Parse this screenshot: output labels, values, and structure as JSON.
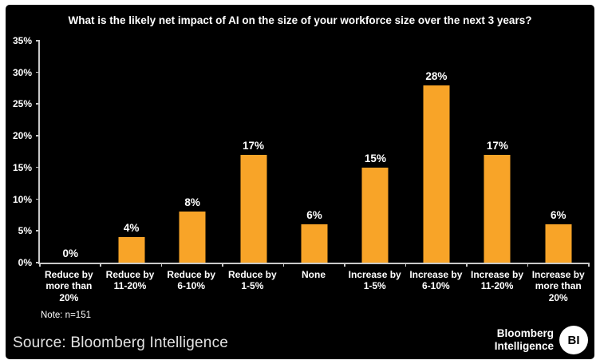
{
  "frame": {
    "background": "#000000",
    "page_background": "#ffffff",
    "axis_color": "#c9c9c9",
    "text_color": "#ffffff"
  },
  "chart_data": {
    "type": "bar",
    "title": "What is the likely net impact of AI on the size of your workforce size over the next 3 years?",
    "categories": [
      "Reduce by more than 20%",
      "Reduce by 11-20%",
      "Reduce by 6-10%",
      "Reduce by 1-5%",
      "None",
      "Increase by 1-5%",
      "Increase by 6-10%",
      "Increase by 11-20%",
      "Increase by more than 20%"
    ],
    "values": [
      0,
      4,
      8,
      17,
      6,
      15,
      28,
      17,
      6
    ],
    "value_labels": [
      "0%",
      "4%",
      "8%",
      "17%",
      "6%",
      "15%",
      "28%",
      "17%",
      "6%"
    ],
    "xlabel": "",
    "ylabel": "",
    "ylim": [
      0,
      35
    ],
    "yticks": [
      0,
      5,
      10,
      15,
      20,
      25,
      30,
      35
    ],
    "ytick_labels": [
      "0%",
      "5%",
      "10%",
      "15%",
      "20%",
      "25%",
      "30%",
      "35%"
    ],
    "bar_color": "#F8A428",
    "grid": false,
    "legend_position": "none"
  },
  "note": "Note: n=151",
  "footer": {
    "source": "Source: Bloomberg Intelligence",
    "logo_line1": "Bloomberg",
    "logo_line2": "Intelligence",
    "logo_badge": "BI"
  }
}
